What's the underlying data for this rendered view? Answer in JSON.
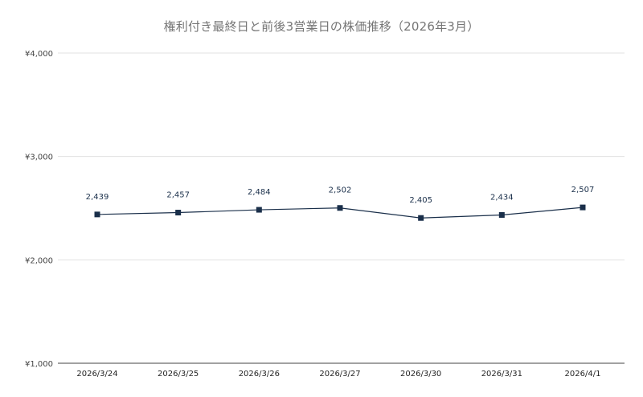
{
  "chart_title": "権利付き最終日と前後3営業日の株価推移（2026年3月）",
  "chart_data": {
    "type": "line",
    "title": "権利付き最終日と前後3営業日の株価推移（2026年3月）",
    "xlabel": "",
    "ylabel": "",
    "categories": [
      "2026/3/24",
      "2026/3/25",
      "2026/3/26",
      "2026/3/27",
      "2026/3/30",
      "2026/3/31",
      "2026/4/1"
    ],
    "series": [
      {
        "values": [
          2439,
          2457,
          2484,
          2502,
          2405,
          2434,
          2507
        ],
        "data_labels": [
          "2,439",
          "2,457",
          "2,484",
          "2,502",
          "2,405",
          "2,434",
          "2,507"
        ]
      }
    ],
    "ylim": [
      1000,
      4000
    ],
    "yticks": [
      1000,
      2000,
      3000,
      4000
    ],
    "ytick_labels": [
      "¥1,000",
      "¥2,000",
      "¥3,000",
      "¥4,000"
    ],
    "grid": true,
    "legend": "none",
    "marker": "square",
    "colors": {
      "line": "#1a2f4a",
      "grid": "#e0e0e0",
      "axis": "#444444"
    }
  }
}
